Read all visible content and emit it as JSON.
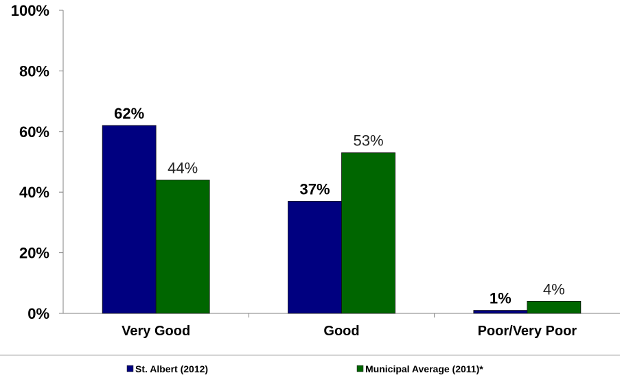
{
  "chart_data": {
    "type": "bar",
    "title": "",
    "xlabel": "",
    "ylabel": "",
    "categories": [
      "Very Good",
      "Good",
      "Poor/Very Poor"
    ],
    "series": [
      {
        "name": "St. Albert (2012)",
        "values": [
          62,
          37,
          1
        ],
        "color": "#000080",
        "labels": [
          "62%",
          "37%",
          "1%"
        ]
      },
      {
        "name": "Municipal Average (2011)*",
        "values": [
          44,
          53,
          4
        ],
        "color": "#006600",
        "labels": [
          "44%",
          "53%",
          "4%"
        ]
      }
    ],
    "ylim": [
      0,
      100
    ],
    "yticks": [
      0,
      20,
      40,
      60,
      80,
      100
    ],
    "ytick_labels": [
      "0%",
      "20%",
      "40%",
      "60%",
      "80%",
      "100%"
    ],
    "grid": false,
    "legend_position": "bottom"
  }
}
